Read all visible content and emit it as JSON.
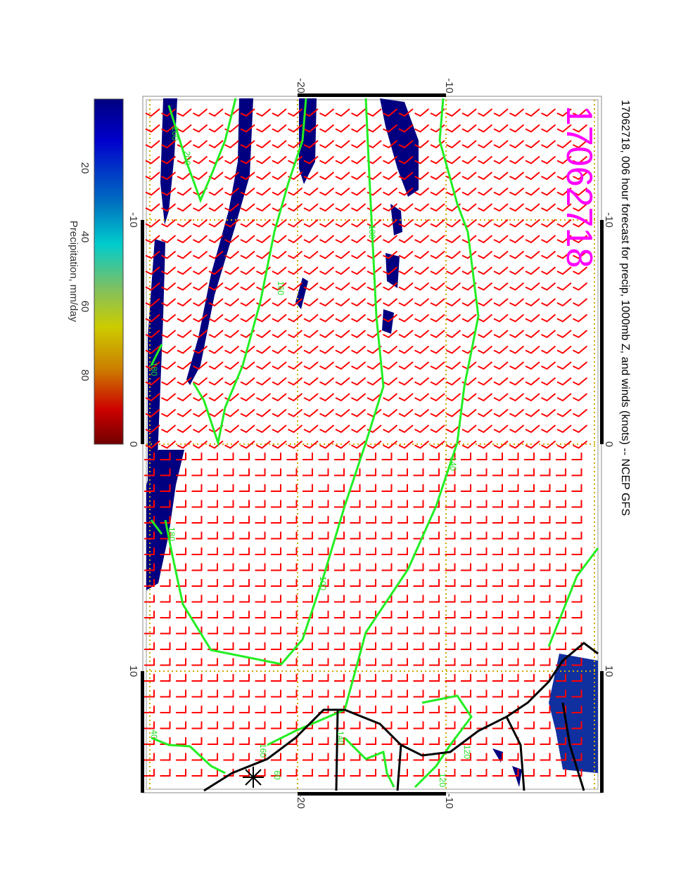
{
  "title": "17062718, 006 hour forecast for precip, 1000mb Z, and winds (knots) -- NCEP GFS",
  "stamp": "17062718",
  "colorbar": {
    "label": "Precipitation, mm/day",
    "ticks": [
      "20",
      "40",
      "60",
      "80"
    ],
    "range": [
      0,
      100
    ],
    "colors": [
      "#00007f",
      "#0000cc",
      "#0070c0",
      "#00cccc",
      "#80c060",
      "#cccc00",
      "#cc8000",
      "#cc0000",
      "#700000"
    ]
  },
  "axes": {
    "top_ticks": [
      "-20",
      "-10"
    ],
    "bottom_ticks": [
      "-20",
      "-10"
    ],
    "left_ticks": [
      "-10",
      "0",
      "10"
    ],
    "right_ticks": [
      "-10",
      "0",
      "10"
    ]
  },
  "contour_labels": [
    "200",
    "180",
    "160",
    "180",
    "180",
    "140",
    "100",
    "120",
    "160",
    "60",
    "40",
    "200",
    "140",
    "120"
  ],
  "colors": {
    "contour": "#22ee22",
    "barb": "#ff0000",
    "precip": "#000080",
    "stamp": "#ff00ff",
    "grid": "#ccaa00"
  }
}
